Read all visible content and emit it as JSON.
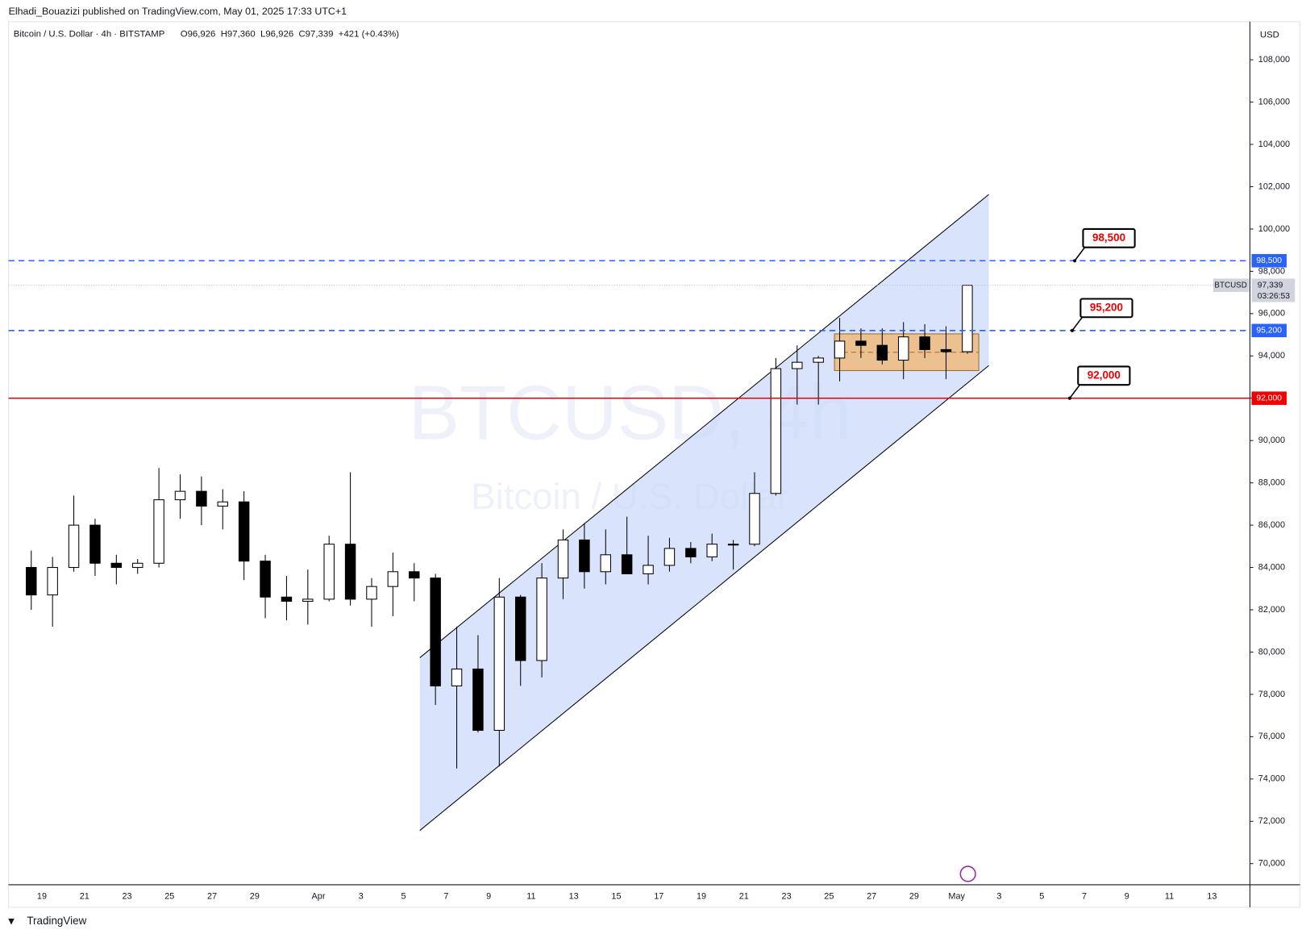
{
  "header": "Elhadi_Bouazizi published on TradingView.com, May 01, 2025 17:33 UTC+1",
  "footer": "TradingView",
  "chart_data": {
    "type": "candlestick",
    "symbol_line": "Bitcoin / U.S. Dollar · 4h · BITSTAMP",
    "ohlc_line": "O96,926  H97,360  L96,926  C97,339  +421 (+0.43%)",
    "watermark": "BTCUSD, 4h",
    "watermark_sub": "Bitcoin / U.S. Dollar",
    "currency": "USD",
    "categories": [
      null,
      "19",
      null,
      "21",
      null,
      "23",
      null,
      "25",
      null,
      "27",
      null,
      "29",
      null,
      null,
      "Apr",
      null,
      "3",
      null,
      "5",
      null,
      "7",
      null,
      "9",
      null,
      "11",
      null,
      "13",
      null,
      "15",
      null,
      "17",
      null,
      "19",
      null,
      "21",
      null,
      "23",
      null,
      "25",
      null,
      "27",
      null,
      "29",
      null,
      "May",
      null,
      "3",
      null,
      "5",
      null,
      "7",
      null,
      "9",
      null,
      "11",
      null,
      "13",
      null
    ],
    "open": [
      84000,
      82700,
      84000,
      86000,
      84200,
      84000,
      84200,
      87200,
      87600,
      86900,
      87100,
      84300,
      82600,
      82400,
      82500,
      85100,
      82500,
      83100,
      83800,
      83500,
      78400,
      79200,
      76300,
      82600,
      79600,
      83500,
      85300,
      83800,
      84600,
      83700,
      84100,
      84900,
      84500,
      85100,
      85100,
      87500,
      93400,
      93700,
      93900,
      94700,
      94500,
      93800,
      94900,
      94300,
      94200,
      null,
      null,
      null,
      null,
      null,
      null,
      null,
      null,
      null,
      null,
      null,
      null,
      null
    ],
    "high": [
      84800,
      84500,
      87400,
      86300,
      84600,
      84400,
      88700,
      88400,
      88300,
      87700,
      87600,
      84600,
      83600,
      83900,
      85500,
      88500,
      83500,
      84700,
      84200,
      83700,
      81200,
      80800,
      83500,
      82700,
      84200,
      85800,
      86100,
      85800,
      86400,
      85500,
      85400,
      85200,
      85600,
      85300,
      88500,
      93900,
      94500,
      94000,
      95800,
      95300,
      95300,
      95600,
      95500,
      95400,
      97360,
      null,
      null,
      null,
      null,
      null,
      null,
      null,
      null,
      null,
      null,
      null,
      null,
      null
    ],
    "low": [
      82000,
      81200,
      83800,
      83600,
      83200,
      83700,
      84000,
      86300,
      86000,
      85800,
      83400,
      81600,
      81500,
      81300,
      82400,
      82200,
      81200,
      81700,
      82400,
      77500,
      74500,
      76200,
      74600,
      78400,
      78800,
      82500,
      83000,
      83200,
      83700,
      83200,
      83800,
      84200,
      84300,
      83900,
      85000,
      87400,
      91700,
      91700,
      92800,
      93900,
      93600,
      92900,
      93900,
      92900,
      94100,
      null,
      null,
      null,
      null,
      null,
      null,
      null,
      null,
      null,
      null,
      null,
      null,
      null
    ],
    "close": [
      82700,
      84000,
      86000,
      84200,
      84000,
      84200,
      87200,
      87600,
      86900,
      87100,
      84300,
      82600,
      82400,
      82500,
      85100,
      82500,
      83100,
      83800,
      83500,
      78400,
      79200,
      76300,
      82600,
      79600,
      83500,
      85300,
      83800,
      84600,
      83700,
      84100,
      84900,
      84500,
      85100,
      85100,
      87500,
      93400,
      93700,
      93900,
      94700,
      94500,
      93800,
      94900,
      94300,
      94200,
      97339,
      null,
      null,
      null,
      null,
      null,
      null,
      null,
      null,
      null,
      null,
      null,
      null,
      null
    ],
    "up_color": "#ffffff",
    "down_color": "#000000",
    "wick_color": "#000000",
    "ylim": [
      69000,
      109800
    ],
    "yticks": [
      {
        "value": 70000,
        "label": "70,000"
      },
      {
        "value": 72000,
        "label": "72,000"
      },
      {
        "value": 74000,
        "label": "74,000"
      },
      {
        "value": 76000,
        "label": "76,000"
      },
      {
        "value": 78000,
        "label": "78,000"
      },
      {
        "value": 80000,
        "label": "80,000"
      },
      {
        "value": 82000,
        "label": "82,000"
      },
      {
        "value": 84000,
        "label": "84,000"
      },
      {
        "value": 86000,
        "label": "86,000"
      },
      {
        "value": 88000,
        "label": "88,000"
      },
      {
        "value": 90000,
        "label": "90,000"
      },
      {
        "value": 92000,
        "label": "92,000"
      },
      {
        "value": 94000,
        "label": "94,000"
      },
      {
        "value": 96000,
        "label": "96,000"
      },
      {
        "value": 98000,
        "label": "98,000"
      },
      {
        "value": 100000,
        "label": "100,000"
      },
      {
        "value": 102000,
        "label": "102,000"
      },
      {
        "value": 104000,
        "label": "104,000"
      },
      {
        "value": 106000,
        "label": "106,000"
      },
      {
        "value": 108000,
        "label": "108,000"
      }
    ],
    "grid": false,
    "levels": [
      {
        "value": 98500,
        "label": "98,500",
        "color": "#2962ff",
        "style": "dashed"
      },
      {
        "value": 95200,
        "label": "95,200",
        "color": "#2962ff",
        "style": "dashed"
      },
      {
        "value": 92000,
        "label": "92,000",
        "color": "#f20000",
        "style": "solid"
      }
    ],
    "last_price": {
      "value": 97339,
      "label": "97,339",
      "symbol": "BTCUSD",
      "countdown": "03:26:53"
    }
  }
}
